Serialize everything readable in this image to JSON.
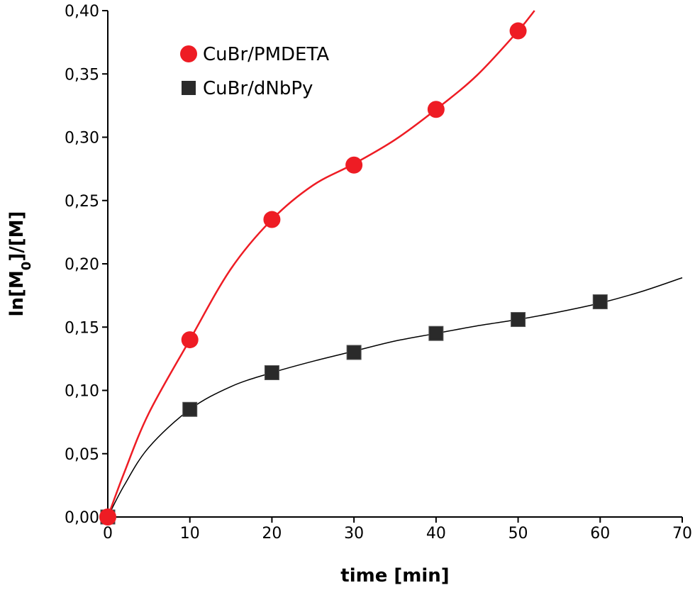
{
  "chart_data": {
    "type": "scatter",
    "xlabel": "time [min]",
    "ylabel": "ln[M",
    "ylabel_sub": "0",
    "ylabel_tail": "]/[M]",
    "xlim": [
      0,
      70
    ],
    "ylim": [
      0,
      0.4
    ],
    "x_ticks": [
      0,
      10,
      20,
      30,
      40,
      50,
      60,
      70
    ],
    "x_tick_labels": [
      "0",
      "10",
      "20",
      "30",
      "40",
      "50",
      "60",
      "70"
    ],
    "y_ticks": [
      0,
      0.05,
      0.1,
      0.15,
      0.2,
      0.25,
      0.3,
      0.35,
      0.4
    ],
    "y_tick_labels": [
      "0,00",
      "0,05",
      "0,10",
      "0,15",
      "0,20",
      "0,25",
      "0,30",
      "0,35",
      "0,40"
    ],
    "grid": false,
    "legend_position": "top-left",
    "series": [
      {
        "name": "CuBr/PMDETA",
        "marker": "circle",
        "color": "#ee1c24",
        "line_color": "#ee1c24",
        "x": [
          0,
          10,
          20,
          30,
          40,
          50
        ],
        "y": [
          0.0,
          0.14,
          0.235,
          0.278,
          0.322,
          0.384
        ],
        "fit_x": [
          0,
          2,
          5,
          10,
          15,
          20,
          25,
          30,
          35,
          40,
          45,
          50,
          52
        ],
        "fit_y": [
          0.0,
          0.035,
          0.082,
          0.14,
          0.196,
          0.235,
          0.262,
          0.279,
          0.298,
          0.322,
          0.349,
          0.384,
          0.4
        ]
      },
      {
        "name": "CuBr/dNbPy",
        "marker": "square",
        "color": "#2a2a2a",
        "line_color": "#000000",
        "x": [
          0,
          10,
          20,
          30,
          40,
          50,
          60
        ],
        "y": [
          0.0,
          0.085,
          0.114,
          0.13,
          0.145,
          0.156,
          0.17
        ],
        "fit_x": [
          0,
          2,
          5,
          10,
          15,
          20,
          25,
          30,
          35,
          40,
          45,
          50,
          55,
          60,
          65,
          70
        ],
        "fit_y": [
          0.0,
          0.025,
          0.055,
          0.085,
          0.103,
          0.114,
          0.123,
          0.131,
          0.139,
          0.145,
          0.151,
          0.156,
          0.162,
          0.169,
          0.178,
          0.189
        ]
      }
    ]
  }
}
